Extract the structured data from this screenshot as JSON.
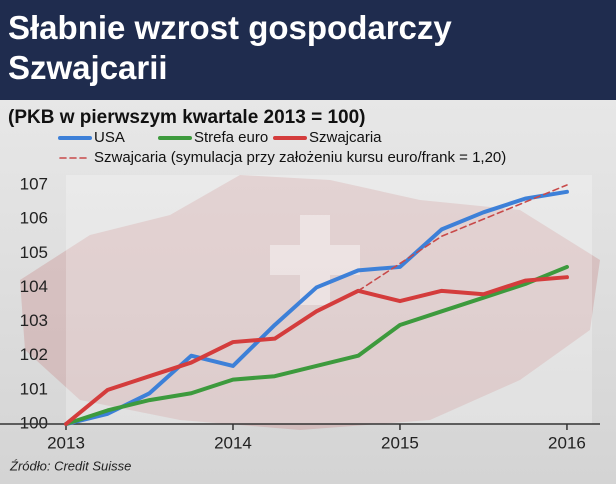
{
  "chart_data": {
    "type": "line",
    "title": "Słabnie wzrost gospodarczy Szwajcarii",
    "subtitle": "(PKB w pierwszym kwartale 2013 = 100)",
    "source": "Źródło: Credit Suisse",
    "x": [
      2013,
      2013.25,
      2013.5,
      2013.75,
      2014,
      2014.25,
      2014.5,
      2014.75,
      2015,
      2015.25,
      2015.5,
      2015.75,
      2016
    ],
    "series": [
      {
        "name": "USA",
        "color": "#3d80d8",
        "style": "solid",
        "values": [
          100,
          100.3,
          100.9,
          102.0,
          101.7,
          102.9,
          104.0,
          104.5,
          104.6,
          105.7,
          106.2,
          106.6,
          106.8
        ]
      },
      {
        "name": "Strefa euro",
        "color": "#3d9a3d",
        "style": "solid",
        "values": [
          100,
          100.4,
          100.7,
          100.9,
          101.3,
          101.4,
          101.7,
          102.0,
          102.9,
          103.3,
          103.7,
          104.1,
          104.6
        ]
      },
      {
        "name": "Szwajcaria",
        "color": "#d43c3c",
        "style": "solid",
        "values": [
          100,
          101.0,
          101.4,
          101.8,
          102.4,
          102.5,
          103.3,
          103.9,
          103.6,
          103.9,
          103.8,
          104.2,
          104.3
        ]
      },
      {
        "name": "Szwajcaria (symulacja przy założeniu kursu euro/frank = 1,20)",
        "color": "#c84a4a",
        "style": "dashed",
        "values": [
          null,
          null,
          null,
          null,
          null,
          null,
          null,
          103.9,
          104.7,
          105.5,
          106.0,
          106.5,
          107.0
        ]
      }
    ],
    "xlim": [
      2013,
      2016.15
    ],
    "xticks": [
      2013,
      2014,
      2015,
      2016
    ],
    "ylim": [
      100,
      107
    ],
    "yticks": [
      100,
      101,
      102,
      103,
      104,
      105,
      106,
      107
    ],
    "grid": false
  }
}
